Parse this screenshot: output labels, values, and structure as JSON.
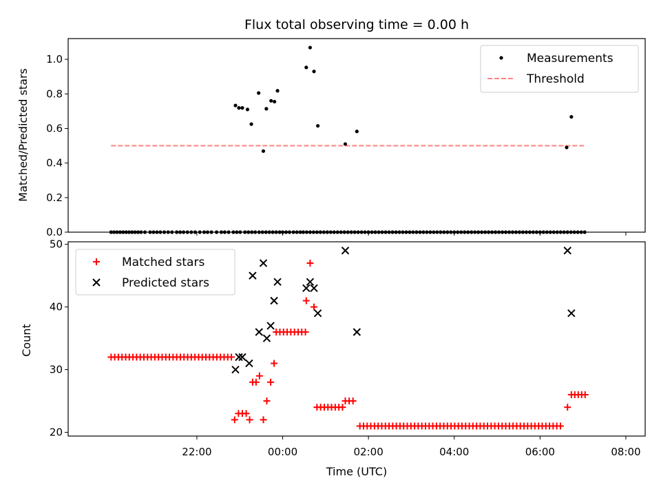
{
  "chart_data": [
    {
      "type": "scatter",
      "title": "Flux total observing time = 0.00 h",
      "xlabel": "",
      "ylabel": "Matched/Predicted stars",
      "ylim": [
        0,
        1.12
      ],
      "yticks": [
        "0.0",
        "0.2",
        "0.4",
        "0.6",
        "0.8",
        "1.0"
      ],
      "legend_position": "top-right",
      "series": [
        {
          "name": "Measurements",
          "marker": "dot",
          "color": "#000000",
          "points": [
            [
              -2.0,
              0
            ],
            [
              -1.93,
              0
            ],
            [
              -1.86,
              0
            ],
            [
              -1.79,
              0
            ],
            [
              -1.72,
              0
            ],
            [
              -1.65,
              0
            ],
            [
              -1.58,
              0
            ],
            [
              -1.51,
              0
            ],
            [
              -1.44,
              0
            ],
            [
              -1.37,
              0
            ],
            [
              -1.3,
              0
            ],
            [
              -1.21,
              0
            ],
            [
              -1.09,
              0
            ],
            [
              -1.01,
              0
            ],
            [
              -0.93,
              0
            ],
            [
              -0.85,
              0
            ],
            [
              -0.76,
              0
            ],
            [
              -0.67,
              0
            ],
            [
              -0.58,
              0
            ],
            [
              -0.47,
              0
            ],
            [
              -0.39,
              0
            ],
            [
              -0.31,
              0
            ],
            [
              -0.22,
              0
            ],
            [
              -0.13,
              0
            ],
            [
              -0.04,
              0
            ],
            [
              0.07,
              0
            ],
            [
              0.17,
              0
            ],
            [
              0.25,
              0
            ],
            [
              0.34,
              0
            ],
            [
              0.46,
              0
            ],
            [
              0.57,
              0
            ],
            [
              0.65,
              0
            ],
            [
              0.74,
              0
            ],
            [
              0.85,
              0
            ],
            [
              0.93,
              0
            ],
            [
              1.01,
              0
            ],
            [
              1.12,
              0
            ],
            [
              1.2,
              0
            ],
            [
              1.28,
              0
            ],
            [
              1.36,
              0
            ],
            [
              1.45,
              0
            ],
            [
              1.53,
              0
            ],
            [
              1.61,
              0
            ],
            [
              1.69,
              0
            ],
            [
              1.77,
              0
            ],
            [
              1.85,
              0
            ],
            [
              1.93,
              0
            ],
            [
              2.0,
              0
            ],
            [
              2.08,
              0
            ],
            [
              2.16,
              0
            ],
            [
              2.25,
              0
            ],
            [
              2.33,
              0
            ],
            [
              2.41,
              0
            ],
            [
              2.48,
              0
            ],
            [
              2.56,
              0
            ],
            [
              2.64,
              0
            ],
            [
              2.72,
              0
            ],
            [
              2.8,
              0
            ],
            [
              2.88,
              0
            ],
            [
              2.96,
              0
            ],
            [
              3.04,
              0
            ],
            [
              3.12,
              0
            ],
            [
              3.2,
              0
            ],
            [
              3.28,
              0
            ],
            [
              3.36,
              0
            ],
            [
              3.44,
              0
            ],
            [
              3.52,
              0
            ],
            [
              3.6,
              0
            ],
            [
              3.68,
              0
            ],
            [
              3.76,
              0
            ],
            [
              3.84,
              0
            ],
            [
              3.92,
              0
            ],
            [
              4.0,
              0
            ],
            [
              4.08,
              0
            ],
            [
              4.16,
              0
            ],
            [
              4.24,
              0
            ],
            [
              4.32,
              0
            ],
            [
              4.4,
              0
            ],
            [
              4.48,
              0
            ],
            [
              4.56,
              0
            ],
            [
              4.64,
              0
            ],
            [
              4.72,
              0
            ],
            [
              4.8,
              0
            ],
            [
              4.88,
              0
            ],
            [
              4.96,
              0
            ],
            [
              5.04,
              0
            ],
            [
              5.12,
              0
            ],
            [
              5.2,
              0
            ],
            [
              5.28,
              0
            ],
            [
              5.36,
              0
            ],
            [
              5.44,
              0
            ],
            [
              5.52,
              0
            ],
            [
              5.6,
              0
            ],
            [
              5.68,
              0
            ],
            [
              5.76,
              0
            ],
            [
              5.84,
              0
            ],
            [
              5.92,
              0
            ],
            [
              6.0,
              0
            ],
            [
              6.08,
              0
            ],
            [
              6.16,
              0
            ],
            [
              6.24,
              0
            ],
            [
              6.32,
              0
            ],
            [
              6.4,
              0
            ],
            [
              6.48,
              0
            ],
            [
              6.56,
              0
            ],
            [
              6.64,
              0
            ],
            [
              6.72,
              0
            ],
            [
              6.8,
              0
            ],
            [
              6.88,
              0
            ],
            [
              6.96,
              0
            ],
            [
              7.04,
              0
            ],
            [
              7.12,
              0
            ],
            [
              7.2,
              0
            ],
            [
              7.28,
              0
            ],
            [
              7.36,
              0
            ],
            [
              7.44,
              0
            ],
            [
              7.52,
              0
            ],
            [
              7.6,
              0
            ],
            [
              7.68,
              0
            ],
            [
              7.76,
              0
            ],
            [
              7.84,
              0
            ],
            [
              7.92,
              0
            ],
            [
              8.0,
              0
            ],
            [
              8.08,
              0
            ],
            [
              8.16,
              0
            ],
            [
              8.24,
              0
            ],
            [
              8.32,
              0
            ],
            [
              8.4,
              0
            ],
            [
              8.48,
              0
            ],
            [
              8.56,
              0
            ],
            [
              8.64,
              0
            ],
            [
              8.72,
              0
            ],
            [
              8.8,
              0
            ],
            [
              8.88,
              0
            ],
            [
              8.96,
              0
            ],
            [
              9.04,
              0
            ],
            [
              0.9,
              0.733
            ],
            [
              0.98,
              0.719
            ],
            [
              1.06,
              0.719
            ],
            [
              1.18,
              0.71
            ],
            [
              1.27,
              0.625
            ],
            [
              1.44,
              0.805
            ],
            [
              1.55,
              0.469
            ],
            [
              1.62,
              0.714
            ],
            [
              1.73,
              0.76
            ],
            [
              1.81,
              0.755
            ],
            [
              1.88,
              0.818
            ],
            [
              2.55,
              0.953
            ],
            [
              2.64,
              1.068
            ],
            [
              2.73,
              0.93
            ],
            [
              2.82,
              0.615
            ],
            [
              3.46,
              0.51
            ],
            [
              3.73,
              0.583
            ],
            [
              8.62,
              0.49
            ],
            [
              8.73,
              0.667
            ]
          ]
        },
        {
          "name": "Threshold",
          "marker": "dashed-line",
          "color": "#ff8080",
          "x": [
            -2.0,
            9.05
          ],
          "y": [
            0.5,
            0.5
          ]
        }
      ]
    },
    {
      "type": "scatter",
      "title": "",
      "xlabel": "Time (UTC)",
      "ylabel": "Count",
      "ylim": [
        19.4,
        50.4
      ],
      "yticks": [
        "20",
        "30",
        "40",
        "50"
      ],
      "xticks": [
        "22:00",
        "00:00",
        "02:00",
        "04:00",
        "06:00",
        "08:00"
      ],
      "xtick_values": [
        0,
        2,
        4,
        6,
        8,
        10
      ],
      "xlim": [
        -3.0,
        10.45
      ],
      "legend_position": "top-left",
      "series": [
        {
          "name": "Matched stars",
          "marker": "plus",
          "color": "#ff0000",
          "segments": [
            {
              "x_start": -2.0,
              "x_end": 0.85,
              "step": 0.085,
              "y": 32
            },
            {
              "x_start": 1.85,
              "x_end": 2.55,
              "step": 0.085,
              "y": 36
            },
            {
              "x_start": 2.8,
              "x_end": 3.4,
              "step": 0.085,
              "y": 24
            },
            {
              "x_start": 3.8,
              "x_end": 8.55,
              "step": 0.085,
              "y": 21
            },
            {
              "x_start": 8.73,
              "x_end": 9.05,
              "step": 0.08,
              "y": 26
            }
          ],
          "points": [
            [
              0.88,
              22
            ],
            [
              0.97,
              23
            ],
            [
              1.06,
              23
            ],
            [
              1.15,
              23
            ],
            [
              1.23,
              22
            ],
            [
              1.3,
              28
            ],
            [
              1.38,
              28
            ],
            [
              1.46,
              29
            ],
            [
              1.55,
              22
            ],
            [
              1.63,
              25
            ],
            [
              1.72,
              28
            ],
            [
              1.8,
              31
            ],
            [
              2.55,
              41
            ],
            [
              2.64,
              47
            ],
            [
              2.73,
              40
            ],
            [
              3.46,
              25
            ],
            [
              3.55,
              25
            ],
            [
              3.64,
              25
            ],
            [
              8.64,
              24
            ]
          ]
        },
        {
          "name": "Predicted stars",
          "marker": "x",
          "color": "#000000",
          "points": [
            [
              0.9,
              30
            ],
            [
              0.98,
              32
            ],
            [
              1.06,
              32
            ],
            [
              1.22,
              31
            ],
            [
              1.3,
              45
            ],
            [
              1.45,
              36
            ],
            [
              1.55,
              47
            ],
            [
              1.63,
              35
            ],
            [
              1.72,
              37
            ],
            [
              1.8,
              41
            ],
            [
              1.88,
              44
            ],
            [
              2.55,
              43
            ],
            [
              2.64,
              44
            ],
            [
              2.73,
              43
            ],
            [
              2.82,
              39
            ],
            [
              3.46,
              49
            ],
            [
              3.73,
              36
            ],
            [
              8.64,
              49
            ],
            [
              8.73,
              39
            ]
          ]
        }
      ]
    }
  ]
}
